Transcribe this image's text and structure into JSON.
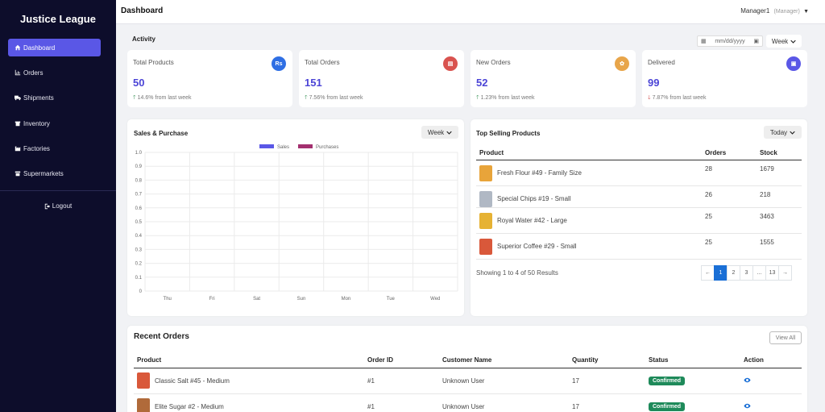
{
  "sidebar": {
    "brand": "Justice League",
    "items": [
      {
        "label": "Dashboard",
        "icon": "home-icon"
      },
      {
        "label": "Orders",
        "icon": "chart-icon"
      },
      {
        "label": "Shipments",
        "icon": "truck-icon"
      },
      {
        "label": "Inventory",
        "icon": "box-icon"
      },
      {
        "label": "Factories",
        "icon": "factory-icon"
      },
      {
        "label": "Supermarkets",
        "icon": "store-icon"
      }
    ],
    "logout": "Logout"
  },
  "header": {
    "title": "Dashboard",
    "user": "Manager1",
    "role": "(Manager)"
  },
  "activity": {
    "title": "Activity",
    "date_placeholder": "mm/dd/yyyy",
    "range": "Week",
    "stats": [
      {
        "label": "Total Products",
        "value": "50",
        "change": "14.6% from last week",
        "direction": "up",
        "badge": "Rs",
        "color": "#2f6fe4"
      },
      {
        "label": "Total Orders",
        "value": "151",
        "change": "7.56% from last week",
        "direction": "up",
        "badge": "▤",
        "color": "#d9534f"
      },
      {
        "label": "New Orders",
        "value": "52",
        "change": "1.23% from last week",
        "direction": "up",
        "badge": "✿",
        "color": "#e8a54a"
      },
      {
        "label": "Delivered",
        "value": "99",
        "change": "7.87% from last week",
        "direction": "down",
        "badge": "▣",
        "color": "#5a57e6"
      }
    ]
  },
  "sales_chart": {
    "title": "Sales & Purchase",
    "range": "Week"
  },
  "chart_data": {
    "type": "bar",
    "categories": [
      "Thu",
      "Fri",
      "Sat",
      "Sun",
      "Mon",
      "Tue",
      "Wed"
    ],
    "series": [
      {
        "name": "Sales",
        "color": "#5a57e6",
        "values": [
          0,
          0,
          0,
          0,
          0,
          0,
          0
        ]
      },
      {
        "name": "Purchases",
        "color": "#a3306f",
        "values": [
          0,
          0,
          0,
          0,
          0,
          0,
          0
        ]
      }
    ],
    "ylim": [
      0,
      1
    ],
    "yticks": [
      "1.0",
      "0.9",
      "0.8",
      "0.7",
      "0.6",
      "0.5",
      "0.4",
      "0.3",
      "0.2",
      "0.1",
      "0"
    ],
    "grid": true,
    "legend": "top-center"
  },
  "top_selling": {
    "title": "Top Selling Products",
    "range": "Today",
    "columns": [
      "Product",
      "Orders",
      "Stock"
    ],
    "rows": [
      {
        "product": "Fresh Flour #49 - Family Size",
        "orders": "28",
        "stock": "1679",
        "color": "#e8a43a"
      },
      {
        "product": "Special Chips #19 - Small",
        "orders": "26",
        "stock": "218",
        "color": "#b0b8c4"
      },
      {
        "product": "Royal Water #42 - Large",
        "orders": "25",
        "stock": "3463",
        "color": "#e6b233"
      },
      {
        "product": "Superior Coffee #29 - Small",
        "orders": "25",
        "stock": "1555",
        "color": "#d9583a"
      }
    ],
    "showing": "Showing 1 to 4 of 50 Results",
    "pages": [
      "←",
      "1",
      "2",
      "3",
      "...",
      "13",
      "→"
    ]
  },
  "recent_orders": {
    "title": "Recent Orders",
    "view_all": "View All",
    "columns": [
      "Product",
      "Order ID",
      "Customer Name",
      "Quantity",
      "Status",
      "Action"
    ],
    "rows": [
      {
        "product": "Classic Salt #45 - Medium",
        "order_id": "#1",
        "customer": "Unknown User",
        "quantity": "17",
        "status": "Confirmed",
        "color": "#d9583a"
      },
      {
        "product": "Elite Sugar #2 - Medium",
        "order_id": "#1",
        "customer": "Unknown User",
        "quantity": "17",
        "status": "Confirmed",
        "color": "#b06a3a"
      }
    ]
  }
}
